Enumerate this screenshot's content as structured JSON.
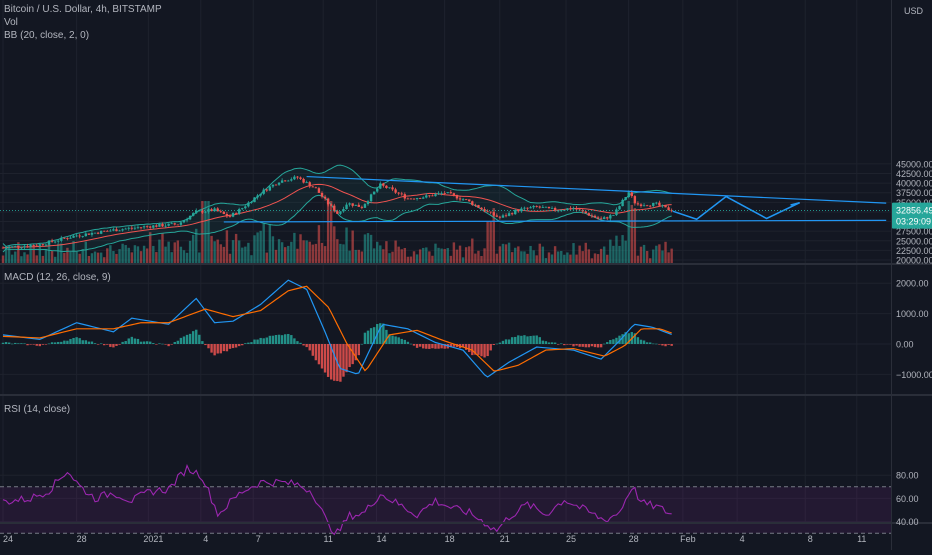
{
  "header": {
    "title": "Bitcoin / U.S. Dollar, 4h, BITSTAMP",
    "vol_label": "Vol",
    "bb_label": "BB (20, close, 2, 0)",
    "currency": "USD"
  },
  "panes": {
    "macd_label": "MACD (12, 26, close, 9)",
    "rsi_label": "RSI (14, close)"
  },
  "price_badge": {
    "price": "32856.49",
    "countdown": "03:29:09"
  },
  "colors": {
    "background": "#131722",
    "up": "#26a69a",
    "down": "#ef5350",
    "trendline": "#2196f3",
    "bb_band": "#26a69a",
    "bb_basis": "#ef5350",
    "macd": "#2196f3",
    "signal": "#ff6d00",
    "rsi": "#9c27b0"
  },
  "chart_data": [
    {
      "type": "candlestick",
      "title": "Bitcoin / U.S. Dollar, 4h, BITSTAMP",
      "y_ticks": [
        20000,
        22500,
        25000,
        27500,
        30000,
        32500,
        35000,
        37500,
        40000,
        42500,
        45000
      ],
      "y_tick_labels": [
        "20000.00",
        "22500.00",
        "25000.00",
        "27500.00",
        "30000.00",
        "32500.00",
        "35000.00",
        "37500.00",
        "40000.00",
        "42500.00",
        "45000.00"
      ],
      "ylim": [
        20000,
        45800
      ],
      "x_ticks": [
        "24",
        "28",
        "2021",
        "4",
        "7",
        "11",
        "14",
        "18",
        "21",
        "25",
        "28",
        "Feb",
        "4",
        "8",
        "11"
      ],
      "close_path": [
        {
          "day": 0,
          "v": 23200
        },
        {
          "day": 2,
          "v": 24000
        },
        {
          "day": 4,
          "v": 26400
        },
        {
          "day": 6,
          "v": 27800
        },
        {
          "day": 8,
          "v": 28800
        },
        {
          "day": 9.5,
          "v": 29300
        },
        {
          "day": 10.5,
          "v": 32500
        },
        {
          "day": 11.5,
          "v": 33000
        },
        {
          "day": 12.3,
          "v": 31200
        },
        {
          "day": 13,
          "v": 33500
        },
        {
          "day": 14,
          "v": 37500
        },
        {
          "day": 15,
          "v": 40500
        },
        {
          "day": 16,
          "v": 41500
        },
        {
          "day": 17,
          "v": 38500
        },
        {
          "day": 17.6,
          "v": 35000
        },
        {
          "day": 18.2,
          "v": 32000
        },
        {
          "day": 18.7,
          "v": 34800
        },
        {
          "day": 19.5,
          "v": 33800
        },
        {
          "day": 20.5,
          "v": 39500
        },
        {
          "day": 21,
          "v": 38500
        },
        {
          "day": 22,
          "v": 36000
        },
        {
          "day": 23,
          "v": 36500
        },
        {
          "day": 24,
          "v": 37500
        },
        {
          "day": 25.2,
          "v": 35500
        },
        {
          "day": 26.5,
          "v": 32000
        },
        {
          "day": 27,
          "v": 31000
        },
        {
          "day": 28,
          "v": 33000
        },
        {
          "day": 29,
          "v": 33800
        },
        {
          "day": 30,
          "v": 33000
        },
        {
          "day": 31,
          "v": 33500
        },
        {
          "day": 32.5,
          "v": 30500
        },
        {
          "day": 33.2,
          "v": 31800
        },
        {
          "day": 34,
          "v": 37700
        },
        {
          "day": 34.4,
          "v": 34500
        },
        {
          "day": 35.5,
          "v": 34500
        },
        {
          "day": 36,
          "v": 33400
        },
        {
          "day": 36.4,
          "v": 32856
        }
      ],
      "trendlines": [
        {
          "name": "resistance",
          "start": {
            "day": 16.5,
            "v": 41700
          },
          "end": {
            "day": 48,
            "v": 34800
          }
        },
        {
          "name": "support",
          "start": {
            "day": 12,
            "v": 29900
          },
          "end": {
            "day": 48,
            "v": 30300
          }
        }
      ],
      "projection_path": [
        {
          "day": 36.4,
          "v": 32700
        },
        {
          "day": 37.7,
          "v": 30600
        },
        {
          "day": 39.3,
          "v": 36500
        },
        {
          "day": 41.5,
          "v": 30800
        },
        {
          "day": 43.3,
          "v": 34900
        },
        {
          "day": 42.8,
          "v": 34300
        }
      ],
      "volume_spikes_day": [
        11,
        17.8,
        26.5,
        34.2
      ]
    },
    {
      "type": "line",
      "title": "MACD (12, 26, close, 9)",
      "y_ticks": [
        -1000,
        0,
        1000,
        2000
      ],
      "y_tick_labels": [
        "−1000.00",
        "0.00",
        "1000.00",
        "2000.00"
      ],
      "ylim": [
        -1600,
        2300
      ],
      "macd_path": [
        {
          "day": 0,
          "v": 300
        },
        {
          "day": 2,
          "v": 150
        },
        {
          "day": 4,
          "v": 700
        },
        {
          "day": 6,
          "v": 400
        },
        {
          "day": 7,
          "v": 850
        },
        {
          "day": 9,
          "v": 650
        },
        {
          "day": 10.5,
          "v": 1500
        },
        {
          "day": 11.5,
          "v": 700
        },
        {
          "day": 12.5,
          "v": 750
        },
        {
          "day": 14,
          "v": 1300
        },
        {
          "day": 15.5,
          "v": 2100
        },
        {
          "day": 16.5,
          "v": 1800
        },
        {
          "day": 17.5,
          "v": 400
        },
        {
          "day": 18.3,
          "v": -800
        },
        {
          "day": 19.3,
          "v": -1000
        },
        {
          "day": 20.6,
          "v": 650
        },
        {
          "day": 22,
          "v": 500
        },
        {
          "day": 23.5,
          "v": 50
        },
        {
          "day": 25,
          "v": -200
        },
        {
          "day": 26.3,
          "v": -1100
        },
        {
          "day": 27.5,
          "v": -600
        },
        {
          "day": 29,
          "v": -100
        },
        {
          "day": 31,
          "v": -200
        },
        {
          "day": 32.5,
          "v": -500
        },
        {
          "day": 33.5,
          "v": 100
        },
        {
          "day": 34.3,
          "v": 650
        },
        {
          "day": 35.3,
          "v": 550
        },
        {
          "day": 36.4,
          "v": 300
        }
      ],
      "signal_path": [
        {
          "day": 0,
          "v": 250
        },
        {
          "day": 2,
          "v": 200
        },
        {
          "day": 4,
          "v": 500
        },
        {
          "day": 6,
          "v": 500
        },
        {
          "day": 7.5,
          "v": 700
        },
        {
          "day": 9,
          "v": 700
        },
        {
          "day": 11,
          "v": 1150
        },
        {
          "day": 12.5,
          "v": 900
        },
        {
          "day": 14,
          "v": 1100
        },
        {
          "day": 15.5,
          "v": 1750
        },
        {
          "day": 16.5,
          "v": 1900
        },
        {
          "day": 17.7,
          "v": 1200
        },
        {
          "day": 18.7,
          "v": 0
        },
        {
          "day": 19.7,
          "v": -900
        },
        {
          "day": 21,
          "v": 300
        },
        {
          "day": 22.5,
          "v": 450
        },
        {
          "day": 24,
          "v": 100
        },
        {
          "day": 25.5,
          "v": -200
        },
        {
          "day": 26.7,
          "v": -900
        },
        {
          "day": 28,
          "v": -700
        },
        {
          "day": 29.5,
          "v": -200
        },
        {
          "day": 31,
          "v": -150
        },
        {
          "day": 32.7,
          "v": -400
        },
        {
          "day": 33.8,
          "v": -50
        },
        {
          "day": 34.7,
          "v": 500
        },
        {
          "day": 35.7,
          "v": 500
        },
        {
          "day": 36.4,
          "v": 350
        }
      ]
    },
    {
      "type": "line",
      "title": "RSI (14, close)",
      "y_ticks": [
        40,
        60,
        80
      ],
      "y_tick_labels": [
        "40.00",
        "60.00",
        "80.00"
      ],
      "ylim": [
        23,
        92
      ],
      "band": [
        30,
        70
      ],
      "rsi_path": [
        {
          "day": 0,
          "v": 57
        },
        {
          "day": 1.5,
          "v": 60
        },
        {
          "day": 2.5,
          "v": 67
        },
        {
          "day": 3.5,
          "v": 84
        },
        {
          "day": 4.2,
          "v": 70
        },
        {
          "day": 5,
          "v": 60
        },
        {
          "day": 6,
          "v": 65
        },
        {
          "day": 7,
          "v": 58
        },
        {
          "day": 8,
          "v": 66
        },
        {
          "day": 9,
          "v": 68
        },
        {
          "day": 10,
          "v": 86
        },
        {
          "day": 10.8,
          "v": 80
        },
        {
          "day": 11.7,
          "v": 46
        },
        {
          "day": 12.3,
          "v": 56
        },
        {
          "day": 13,
          "v": 66
        },
        {
          "day": 14,
          "v": 74
        },
        {
          "day": 15,
          "v": 74
        },
        {
          "day": 16,
          "v": 72
        },
        {
          "day": 16.8,
          "v": 66
        },
        {
          "day": 17.3,
          "v": 50
        },
        {
          "day": 17.7,
          "v": 36
        },
        {
          "day": 18.2,
          "v": 30
        },
        {
          "day": 18.8,
          "v": 45
        },
        {
          "day": 19.6,
          "v": 47
        },
        {
          "day": 20.5,
          "v": 64
        },
        {
          "day": 21.5,
          "v": 55
        },
        {
          "day": 22.5,
          "v": 46
        },
        {
          "day": 23.5,
          "v": 58
        },
        {
          "day": 24.5,
          "v": 51
        },
        {
          "day": 25.3,
          "v": 48
        },
        {
          "day": 26.3,
          "v": 38
        },
        {
          "day": 26.8,
          "v": 32
        },
        {
          "day": 27.5,
          "v": 44
        },
        {
          "day": 28.5,
          "v": 55
        },
        {
          "day": 29.5,
          "v": 46
        },
        {
          "day": 30.5,
          "v": 59
        },
        {
          "day": 31.5,
          "v": 51
        },
        {
          "day": 32.7,
          "v": 41
        },
        {
          "day": 33.5,
          "v": 48
        },
        {
          "day": 34.2,
          "v": 71
        },
        {
          "day": 34.7,
          "v": 56
        },
        {
          "day": 35.5,
          "v": 53
        },
        {
          "day": 36.4,
          "v": 46
        }
      ]
    }
  ]
}
